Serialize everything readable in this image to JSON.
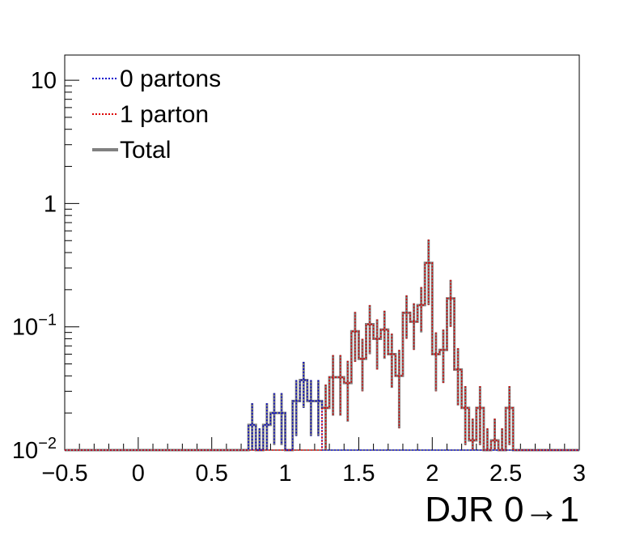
{
  "chart_data": {
    "type": "histogram",
    "title": "",
    "xlabel": "DJR 0→1",
    "ylabel": "",
    "yscale": "log",
    "xlim": [
      -0.5,
      3
    ],
    "ylim": [
      0.01,
      16
    ],
    "bin_width": 0.05,
    "bins_start": -0.5,
    "grid": false,
    "legend_position": "top-left",
    "x_ticks": [
      "−0.5",
      "0",
      "0.5",
      "1",
      "1.5",
      "2",
      "2.5",
      "3"
    ],
    "y_ticks": [
      {
        "value": 0.01,
        "base": "10",
        "exp": "−2"
      },
      {
        "value": 0.1,
        "base": "10",
        "exp": "−1"
      },
      {
        "value": 1,
        "base": "1",
        "exp": ""
      },
      {
        "value": 10,
        "base": "10",
        "exp": ""
      }
    ],
    "series": [
      {
        "name": "0 partons",
        "color": "#0000cc",
        "style": "dotted",
        "bins": [
          {
            "x": 0.75,
            "y": 0.016,
            "err": 0.008
          },
          {
            "x": 0.8,
            "y": 0.01,
            "err": 0.005
          },
          {
            "x": 0.85,
            "y": 0.016,
            "err": 0.008
          },
          {
            "x": 0.9,
            "y": 0.02,
            "err": 0.009
          },
          {
            "x": 0.95,
            "y": 0.02,
            "err": 0.009
          },
          {
            "x": 1.05,
            "y": 0.025,
            "err": 0.012
          },
          {
            "x": 1.1,
            "y": 0.037,
            "err": 0.015
          },
          {
            "x": 1.15,
            "y": 0.025,
            "err": 0.012
          },
          {
            "x": 1.2,
            "y": 0.025,
            "err": 0.012
          }
        ]
      },
      {
        "name": "1 parton",
        "color": "#dd0000",
        "style": "dotted",
        "bins": [
          {
            "x": 1.25,
            "y": 0.022,
            "err": 0.012
          },
          {
            "x": 1.3,
            "y": 0.039,
            "err": 0.02
          },
          {
            "x": 1.35,
            "y": 0.039,
            "err": 0.02
          },
          {
            "x": 1.4,
            "y": 0.035,
            "err": 0.018
          },
          {
            "x": 1.45,
            "y": 0.092,
            "err": 0.04
          },
          {
            "x": 1.5,
            "y": 0.055,
            "err": 0.025
          },
          {
            "x": 1.55,
            "y": 0.105,
            "err": 0.045
          },
          {
            "x": 1.6,
            "y": 0.08,
            "err": 0.035
          },
          {
            "x": 1.65,
            "y": 0.095,
            "err": 0.04
          },
          {
            "x": 1.7,
            "y": 0.06,
            "err": 0.028
          },
          {
            "x": 1.75,
            "y": 0.04,
            "err": 0.025
          },
          {
            "x": 1.8,
            "y": 0.13,
            "err": 0.05
          },
          {
            "x": 1.85,
            "y": 0.11,
            "err": 0.045
          },
          {
            "x": 1.9,
            "y": 0.15,
            "err": 0.06
          },
          {
            "x": 1.95,
            "y": 0.33,
            "err": 0.18
          },
          {
            "x": 2.0,
            "y": 0.06,
            "err": 0.03
          },
          {
            "x": 2.05,
            "y": 0.065,
            "err": 0.03
          },
          {
            "x": 2.1,
            "y": 0.17,
            "err": 0.07
          },
          {
            "x": 2.15,
            "y": 0.045,
            "err": 0.022
          },
          {
            "x": 2.2,
            "y": 0.022,
            "err": 0.011
          },
          {
            "x": 2.25,
            "y": 0.012,
            "err": 0.006
          },
          {
            "x": 2.3,
            "y": 0.022,
            "err": 0.011
          },
          {
            "x": 2.35,
            "y": 0.01,
            "err": 0.005
          },
          {
            "x": 2.4,
            "y": 0.012,
            "err": 0.006
          },
          {
            "x": 2.45,
            "y": 0.01,
            "err": 0.005
          },
          {
            "x": 2.5,
            "y": 0.022,
            "err": 0.011
          }
        ]
      },
      {
        "name": "Total",
        "color": "#808080",
        "style": "solid"
      }
    ]
  }
}
